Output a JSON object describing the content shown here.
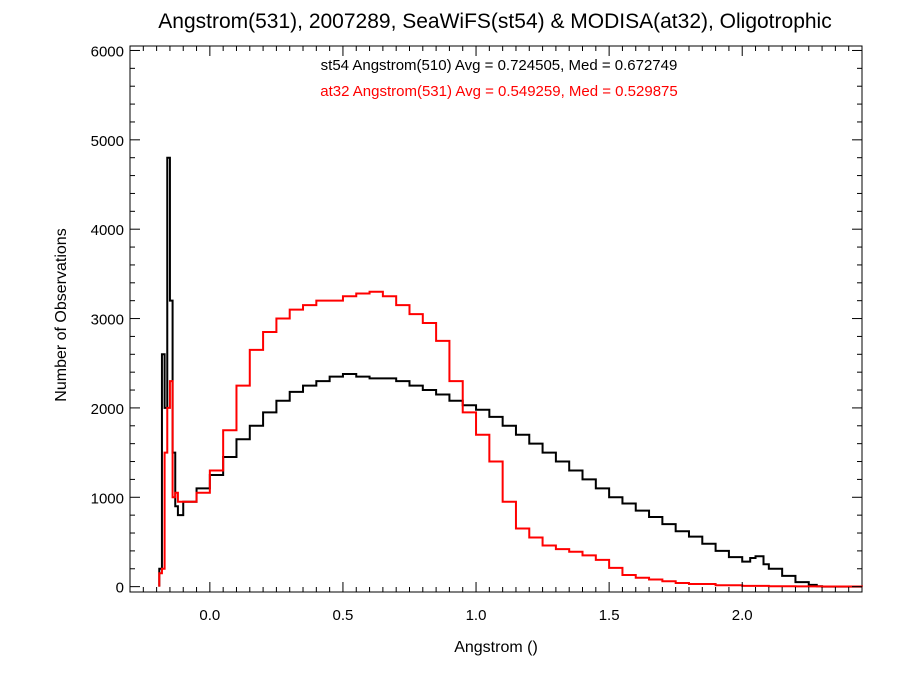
{
  "chart_data": {
    "type": "line",
    "title": "Angstrom(531), 2007289, SeaWiFS(st54) & MODISA(at32), Oligotrophic",
    "xlabel": "Angstrom ()",
    "ylabel": "Number of Observations",
    "xlim": [
      -0.3,
      2.45
    ],
    "ylim": [
      -60,
      6050
    ],
    "x_ticks": [
      0.0,
      0.5,
      1.0,
      1.5,
      2.0
    ],
    "x_tick_labels": [
      "0.0",
      "0.5",
      "1.0",
      "1.5",
      "2.0"
    ],
    "y_ticks": [
      0,
      1000,
      2000,
      3000,
      4000,
      5000,
      6000
    ],
    "y_tick_labels": [
      "0",
      "1000",
      "2000",
      "3000",
      "4000",
      "5000",
      "6000"
    ],
    "grid": false,
    "step": true,
    "series": [
      {
        "color": "#000000",
        "annotation": "st54 Angstrom(510) Avg = 0.724505, Med = 0.672749",
        "x": [
          -0.19,
          -0.18,
          -0.17,
          -0.16,
          -0.15,
          -0.14,
          -0.13,
          -0.12,
          -0.1,
          -0.05,
          0.0,
          0.05,
          0.1,
          0.15,
          0.2,
          0.25,
          0.3,
          0.35,
          0.4,
          0.45,
          0.5,
          0.55,
          0.6,
          0.65,
          0.7,
          0.75,
          0.8,
          0.85,
          0.9,
          0.95,
          1.0,
          1.05,
          1.1,
          1.15,
          1.2,
          1.25,
          1.3,
          1.35,
          1.4,
          1.45,
          1.5,
          1.55,
          1.6,
          1.65,
          1.7,
          1.75,
          1.8,
          1.85,
          1.9,
          1.95,
          2.0,
          2.03,
          2.05,
          2.08,
          2.1,
          2.15,
          2.2,
          2.25,
          2.28,
          2.3
        ],
        "y": [
          200,
          2600,
          2000,
          4800,
          3200,
          1500,
          900,
          800,
          950,
          1100,
          1250,
          1450,
          1650,
          1800,
          1950,
          2080,
          2180,
          2250,
          2300,
          2350,
          2380,
          2350,
          2330,
          2330,
          2300,
          2250,
          2200,
          2150,
          2080,
          2030,
          1980,
          1900,
          1800,
          1700,
          1600,
          1500,
          1400,
          1300,
          1200,
          1100,
          1000,
          930,
          850,
          780,
          700,
          620,
          560,
          480,
          400,
          330,
          280,
          320,
          340,
          250,
          200,
          120,
          50,
          20,
          5,
          0
        ]
      },
      {
        "color": "#ff0000",
        "annotation": "at32 Angstrom(531) Avg = 0.549259, Med = 0.529875",
        "x": [
          -0.19,
          -0.18,
          -0.17,
          -0.16,
          -0.15,
          -0.14,
          -0.13,
          -0.12,
          -0.1,
          -0.05,
          0.0,
          0.05,
          0.1,
          0.15,
          0.2,
          0.25,
          0.3,
          0.35,
          0.4,
          0.45,
          0.5,
          0.55,
          0.6,
          0.65,
          0.7,
          0.75,
          0.8,
          0.85,
          0.9,
          0.95,
          1.0,
          1.05,
          1.1,
          1.15,
          1.2,
          1.25,
          1.3,
          1.35,
          1.4,
          1.45,
          1.5,
          1.55,
          1.6,
          1.65,
          1.7,
          1.75,
          1.8,
          1.9,
          2.0,
          2.1,
          2.2,
          2.3,
          2.4,
          2.45
        ],
        "y": [
          150,
          200,
          1500,
          2000,
          2300,
          1000,
          1050,
          950,
          950,
          1050,
          1300,
          1750,
          2250,
          2650,
          2850,
          3000,
          3100,
          3150,
          3200,
          3200,
          3250,
          3280,
          3300,
          3250,
          3150,
          3050,
          2950,
          2750,
          2300,
          1950,
          1700,
          1400,
          950,
          650,
          550,
          460,
          420,
          390,
          350,
          300,
          210,
          130,
          100,
          80,
          60,
          40,
          30,
          15,
          8,
          5,
          3,
          2,
          1,
          0
        ]
      }
    ]
  }
}
